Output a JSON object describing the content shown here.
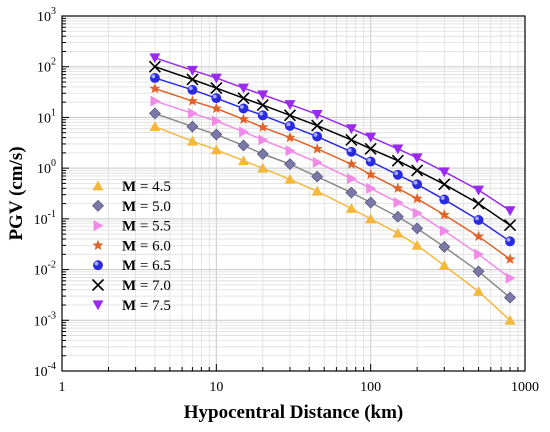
{
  "chart_data": {
    "type": "scatter",
    "x_scale": "log",
    "y_scale": "log",
    "xlabel": "Hypocentral Distance (km)",
    "ylabel": "PGV (cm/s)",
    "xlim": [
      1,
      1000
    ],
    "ylim": [
      0.0001,
      1000
    ],
    "x_ticks": [
      {
        "value": 1,
        "label": "1"
      },
      {
        "value": 10,
        "label": "10"
      },
      {
        "value": 100,
        "label": "100"
      },
      {
        "value": 1000,
        "label": "1000"
      }
    ],
    "y_ticks": [
      {
        "value": 0.0001,
        "base": "10",
        "exp": "-4"
      },
      {
        "value": 0.001,
        "base": "10",
        "exp": "-3"
      },
      {
        "value": 0.01,
        "base": "10",
        "exp": "-2"
      },
      {
        "value": 0.1,
        "base": "10",
        "exp": "-1"
      },
      {
        "value": 1,
        "base": "10",
        "exp": "0"
      },
      {
        "value": 10,
        "base": "10",
        "exp": "1"
      },
      {
        "value": 100,
        "base": "10",
        "exp": "2"
      },
      {
        "value": 1000,
        "base": "10",
        "exp": "3"
      }
    ],
    "grid": true,
    "legend_position": "bottom-left",
    "x": [
      4,
      7,
      10,
      15,
      20,
      30,
      45,
      75,
      100,
      150,
      200,
      300,
      500,
      800
    ],
    "series": [
      {
        "name": "M = 4.5",
        "label_m": "M",
        "label_rest": " = 4.5",
        "marker": "triangle-up",
        "color": "#F5B83D",
        "line_color": "#F5B83D",
        "values": [
          6.6,
          3.4,
          2.3,
          1.4,
          1.0,
          0.6,
          0.35,
          0.16,
          0.1,
          0.052,
          0.03,
          0.012,
          0.0037,
          0.001
        ]
      },
      {
        "name": "M = 5.0",
        "label_m": "M",
        "label_rest": " = 5.0",
        "marker": "diamond",
        "color": "#7A78A8",
        "line_color": "#8A8A8A",
        "values": [
          12,
          6.6,
          4.6,
          2.8,
          1.9,
          1.2,
          0.68,
          0.33,
          0.21,
          0.11,
          0.065,
          0.028,
          0.0092,
          0.0028
        ]
      },
      {
        "name": "M = 5.5",
        "label_m": "M",
        "label_rest": " = 5.5",
        "marker": "triangle-right",
        "color": "#F08AE8",
        "line_color": "#F08AE8",
        "values": [
          21,
          12,
          8.5,
          5.2,
          3.6,
          2.2,
          1.3,
          0.62,
          0.4,
          0.21,
          0.13,
          0.058,
          0.02,
          0.0068
        ]
      },
      {
        "name": "M = 6.0",
        "label_m": "M",
        "label_rest": " = 6.0",
        "marker": "star",
        "color": "#E0642A",
        "line_color": "#E0642A",
        "values": [
          37,
          21,
          15,
          9.2,
          6.4,
          4.0,
          2.4,
          1.2,
          0.75,
          0.4,
          0.25,
          0.12,
          0.045,
          0.016
        ]
      },
      {
        "name": "M = 6.5",
        "label_m": "M",
        "label_rest": " = 6.5",
        "marker": "circle",
        "color": "#2A2AE0",
        "line_color": "#2A2AE0",
        "values": [
          60,
          35,
          24,
          15,
          11,
          6.8,
          4.2,
          2.1,
          1.35,
          0.74,
          0.48,
          0.24,
          0.095,
          0.036
        ]
      },
      {
        "name": "M = 7.0",
        "label_m": "M",
        "label_rest": " = 7.0",
        "marker": "x",
        "color": "#000000",
        "line_color": "#000000",
        "values": [
          100,
          56,
          38,
          24,
          17.5,
          11,
          6.9,
          3.6,
          2.4,
          1.4,
          0.9,
          0.48,
          0.2,
          0.075
        ]
      },
      {
        "name": "M = 7.5",
        "label_m": "M",
        "label_rest": " = 7.5",
        "marker": "triangle-down",
        "color": "#9A2AF0",
        "line_color": "#9A2AF0",
        "values": [
          150,
          85,
          60,
          38,
          28,
          18,
          11.5,
          6.0,
          4.1,
          2.4,
          1.6,
          0.85,
          0.37,
          0.145
        ]
      }
    ]
  }
}
